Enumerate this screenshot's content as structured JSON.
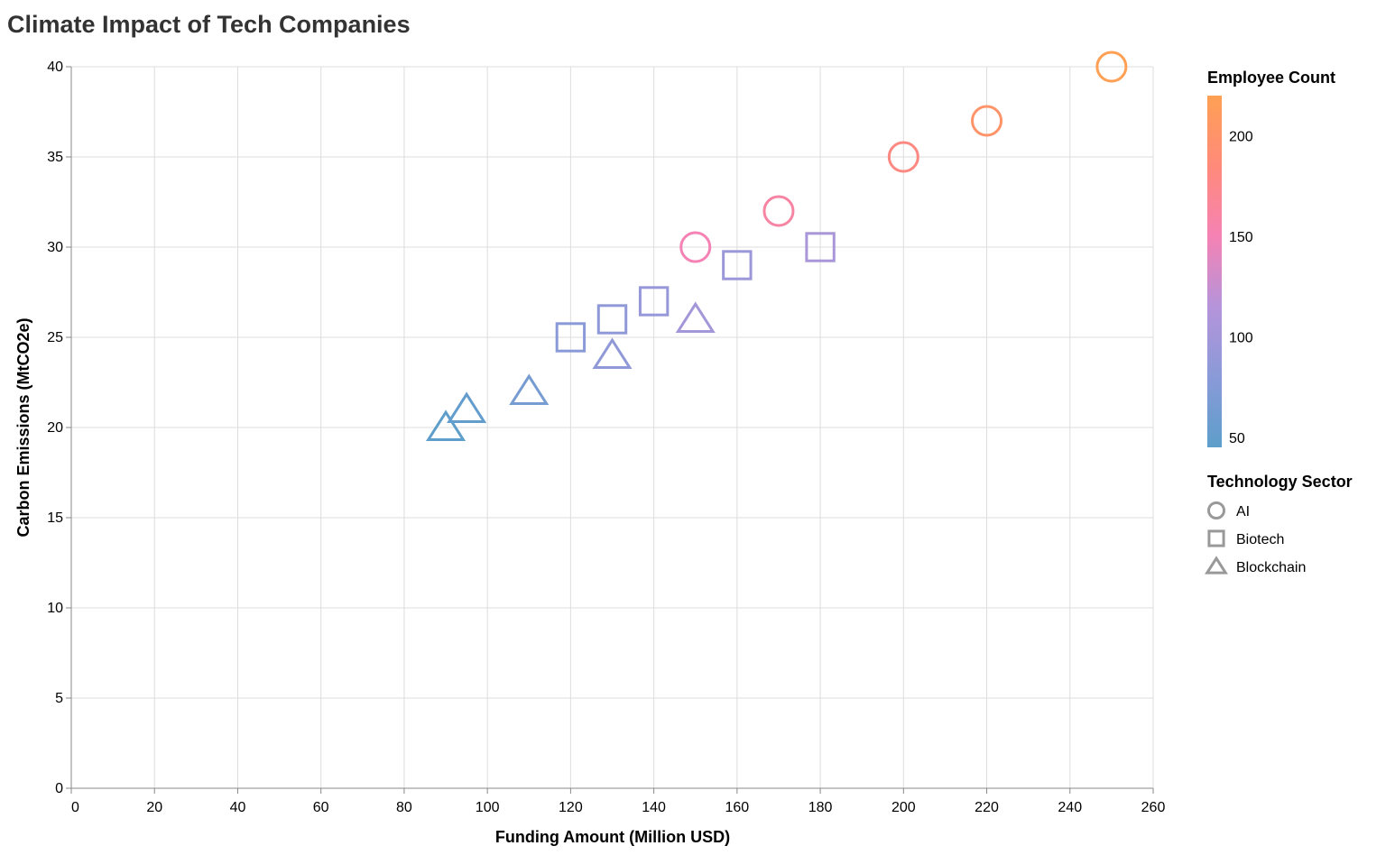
{
  "chart_data": {
    "type": "scatter",
    "title": "Climate Impact of Tech Companies",
    "xlabel": "Funding Amount (Million USD)",
    "ylabel": "Carbon Emissions (MtCO2e)",
    "xlim": [
      0,
      260
    ],
    "ylim": [
      0,
      40
    ],
    "xticks": [
      0,
      20,
      40,
      60,
      80,
      100,
      120,
      140,
      160,
      180,
      200,
      220,
      240,
      260
    ],
    "yticks": [
      0,
      5,
      10,
      15,
      20,
      25,
      30,
      35,
      40
    ],
    "grid": true,
    "color_legend": {
      "title": "Employee Count",
      "min": 45,
      "max": 220,
      "ticks": [
        50,
        100,
        150,
        200
      ],
      "colors": [
        "#5d9ecb",
        "#8a9ad8",
        "#b594da",
        "#f582b4",
        "#ff8a7a",
        "#ffa054"
      ]
    },
    "shape_legend": {
      "title": "Technology Sector",
      "items": [
        {
          "label": "AI",
          "shape": "circle"
        },
        {
          "label": "Biotech",
          "shape": "square"
        },
        {
          "label": "Blockchain",
          "shape": "triangle"
        }
      ]
    },
    "points": [
      {
        "sector": "AI",
        "funding": 150,
        "emissions": 30,
        "employees": 150
      },
      {
        "sector": "AI",
        "funding": 170,
        "emissions": 32,
        "employees": 160
      },
      {
        "sector": "AI",
        "funding": 200,
        "emissions": 35,
        "employees": 180
      },
      {
        "sector": "AI",
        "funding": 220,
        "emissions": 37,
        "employees": 200
      },
      {
        "sector": "AI",
        "funding": 250,
        "emissions": 40,
        "employees": 220
      },
      {
        "sector": "Biotech",
        "funding": 120,
        "emissions": 25,
        "employees": 80
      },
      {
        "sector": "Biotech",
        "funding": 130,
        "emissions": 26,
        "employees": 85
      },
      {
        "sector": "Biotech",
        "funding": 140,
        "emissions": 27,
        "employees": 90
      },
      {
        "sector": "Biotech",
        "funding": 160,
        "emissions": 29,
        "employees": 95
      },
      {
        "sector": "Biotech",
        "funding": 180,
        "emissions": 30,
        "employees": 105
      },
      {
        "sector": "Blockchain",
        "funding": 90,
        "emissions": 20,
        "employees": 45
      },
      {
        "sector": "Blockchain",
        "funding": 95,
        "emissions": 21,
        "employees": 50
      },
      {
        "sector": "Blockchain",
        "funding": 110,
        "emissions": 22,
        "employees": 65
      },
      {
        "sector": "Blockchain",
        "funding": 130,
        "emissions": 24,
        "employees": 85
      },
      {
        "sector": "Blockchain",
        "funding": 150,
        "emissions": 26,
        "employees": 100
      }
    ]
  }
}
